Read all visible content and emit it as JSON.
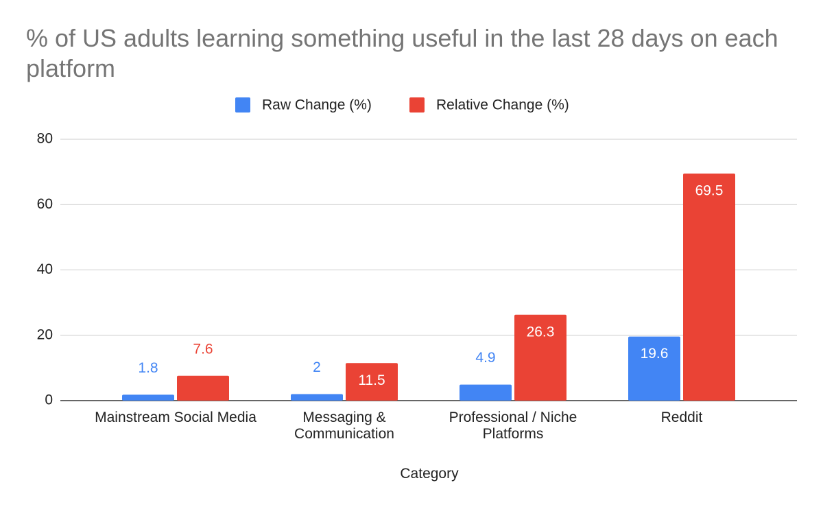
{
  "chart_data": {
    "type": "bar",
    "title": "% of US adults learning something useful in the last 28 days on each platform",
    "categories": [
      "Mainstream Social Media",
      "Messaging & Communication",
      "Professional / Niche Platforms",
      "Reddit"
    ],
    "series": [
      {
        "name": "Raw Change (%)",
        "color": "#4285f4",
        "values": [
          1.8,
          2,
          4.9,
          19.6
        ]
      },
      {
        "name": "Relative Change (%)",
        "color": "#ea4335",
        "values": [
          7.6,
          11.5,
          26.3,
          69.5
        ]
      }
    ],
    "xlabel": "Category",
    "ylim": [
      0,
      80
    ],
    "yticks": [
      0,
      20,
      40,
      60,
      80
    ],
    "grid": true,
    "legend": "top"
  }
}
